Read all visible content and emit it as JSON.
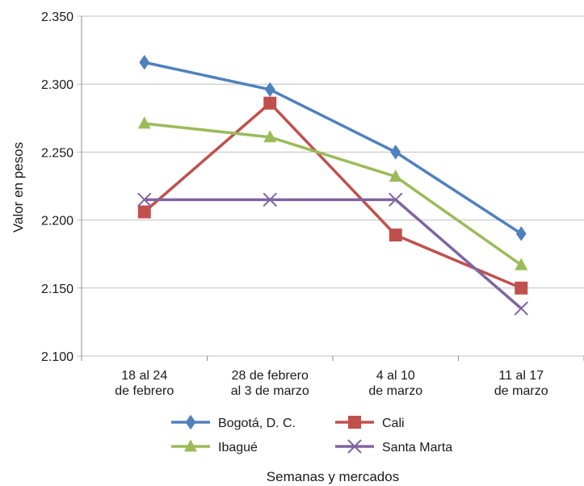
{
  "chart_data": {
    "type": "line",
    "title": "",
    "xlabel": "Semanas y mercados",
    "ylabel": "Valor en pesos",
    "ylim": [
      2100,
      2350
    ],
    "yticks": [
      2100,
      2150,
      2200,
      2250,
      2300,
      2350
    ],
    "ytick_labels": [
      "2.100",
      "2.150",
      "2.200",
      "2.250",
      "2.300",
      "2.350"
    ],
    "grid": true,
    "legend": "bottom",
    "categories": [
      [
        "18 al 24",
        "de febrero"
      ],
      [
        "28 de febrero",
        "al 3 de marzo"
      ],
      [
        "4 al 10",
        "de marzo"
      ],
      [
        "11 al 17",
        "de marzo"
      ]
    ],
    "series": [
      {
        "name": "Bogotá, D. C.",
        "color": "#4f81bd",
        "marker": "diamond",
        "values": [
          2316,
          2296,
          2250,
          2190
        ]
      },
      {
        "name": "Cali",
        "color": "#c0504d",
        "marker": "square",
        "values": [
          2206,
          2286,
          2189,
          2150
        ]
      },
      {
        "name": "Ibagué",
        "color": "#9bbb59",
        "marker": "triangle",
        "values": [
          2271,
          2261,
          2232,
          2167
        ]
      },
      {
        "name": "Santa Marta",
        "color": "#8064a2",
        "marker": "x",
        "values": [
          2215,
          2215,
          2215,
          2135
        ]
      }
    ]
  }
}
